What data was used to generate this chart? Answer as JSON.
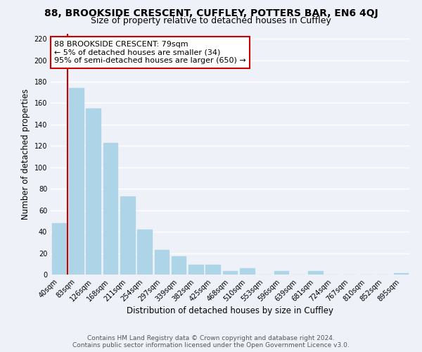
{
  "title": "88, BROOKSIDE CRESCENT, CUFFLEY, POTTERS BAR, EN6 4QJ",
  "subtitle": "Size of property relative to detached houses in Cuffley",
  "xlabel": "Distribution of detached houses by size in Cuffley",
  "ylabel": "Number of detached properties",
  "bar_color": "#aed4e8",
  "marker_color": "#cc0000",
  "categories": [
    "40sqm",
    "83sqm",
    "126sqm",
    "168sqm",
    "211sqm",
    "254sqm",
    "297sqm",
    "339sqm",
    "382sqm",
    "425sqm",
    "468sqm",
    "510sqm",
    "553sqm",
    "596sqm",
    "639sqm",
    "681sqm",
    "724sqm",
    "767sqm",
    "810sqm",
    "852sqm",
    "895sqm"
  ],
  "values": [
    48,
    174,
    155,
    123,
    73,
    42,
    23,
    17,
    9,
    9,
    3,
    6,
    0,
    3,
    0,
    3,
    0,
    0,
    0,
    0,
    1
  ],
  "annotation_title": "88 BROOKSIDE CRESCENT: 79sqm",
  "annotation_line1": "← 5% of detached houses are smaller (34)",
  "annotation_line2": "95% of semi-detached houses are larger (650) →",
  "ylim": [
    0,
    225
  ],
  "yticks": [
    0,
    20,
    40,
    60,
    80,
    100,
    120,
    140,
    160,
    180,
    200,
    220
  ],
  "footer1": "Contains HM Land Registry data © Crown copyright and database right 2024.",
  "footer2": "Contains public sector information licensed under the Open Government Licence v3.0.",
  "background_color": "#eef2f8",
  "plot_bg_color": "#eef2f8",
  "grid_color": "#ffffff",
  "annotation_box_color": "#ffffff",
  "annotation_box_edge": "#cc0000",
  "title_fontsize": 10,
  "subtitle_fontsize": 9,
  "label_fontsize": 8.5,
  "tick_fontsize": 7,
  "annotation_fontsize": 8,
  "footer_fontsize": 6.5
}
